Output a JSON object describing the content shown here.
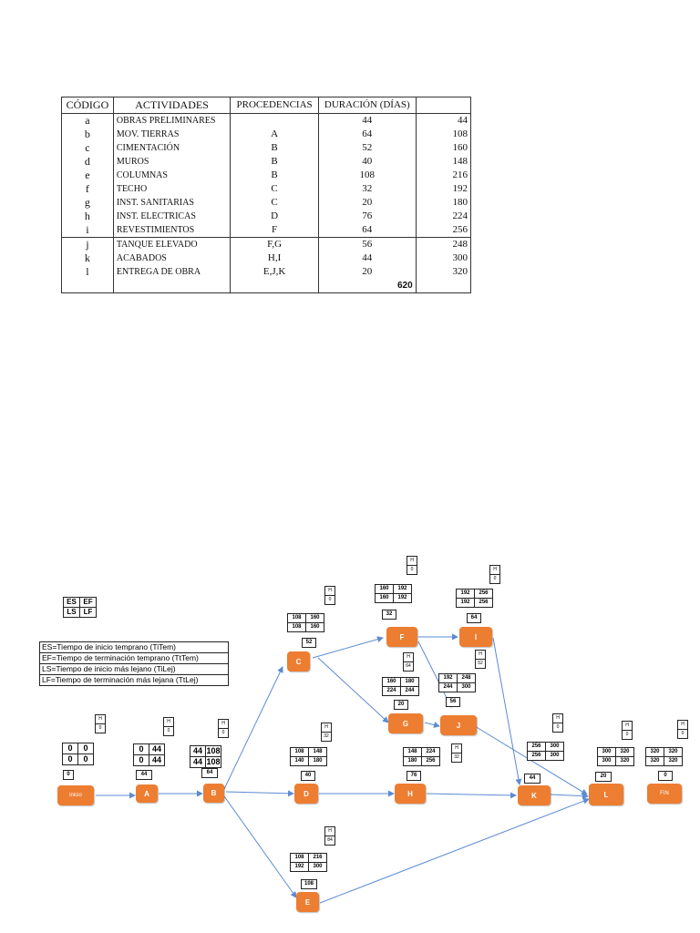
{
  "table": {
    "headers": [
      "CÓDIGO",
      "ACTIVIDADES",
      "PROCEDENCIAS",
      "DURACIÓN (DÍAS)",
      ""
    ],
    "rows": [
      [
        "a",
        "OBRAS PRELIMINARES",
        "",
        "44",
        "44"
      ],
      [
        "b",
        "MOV. TIERRAS",
        "A",
        "64",
        "108"
      ],
      [
        "c",
        "CIMENTACIÓN",
        "B",
        "52",
        "160"
      ],
      [
        "d",
        "MUROS",
        "B",
        "40",
        "148"
      ],
      [
        "e",
        "COLUMNAS",
        "B",
        "108",
        "216"
      ],
      [
        "f",
        "TECHO",
        "C",
        "32",
        "192"
      ],
      [
        "g",
        "INST. SANITARIAS",
        "C",
        "20",
        "180"
      ],
      [
        "h",
        "INST. ELECTRICAS",
        "D",
        "76",
        "224"
      ],
      [
        "i",
        "REVESTIMIENTOS",
        "F",
        "64",
        "256"
      ],
      [
        "j",
        "TANQUE ELEVADO",
        "F,G",
        "56",
        "248"
      ],
      [
        "k",
        "ACABADOS",
        "H,I",
        "44",
        "300"
      ],
      [
        "l",
        "ENTREGA DE OBRA",
        "E,J,K",
        "20",
        "320"
      ]
    ],
    "total": "620"
  },
  "legend": {
    "grid": [
      "ES",
      "EF",
      "LS",
      "LF"
    ],
    "definitions": [
      "ES=Tiempo de inicio temprano (TiTem)",
      "EF=Tiempo de terminación temprano (TtTem)",
      "LS=Tiempo de inicio más lejano (TiLej)",
      "LF=Tiempo de terminación más lejana (TtLej)"
    ]
  },
  "network": {
    "nodes": {
      "inicio": {
        "label": "inicio",
        "es": "0",
        "ef": "0",
        "ls": "0",
        "lf": "0",
        "dur": "0",
        "h": "H",
        "hv": "0"
      },
      "A": {
        "label": "A",
        "es": "0",
        "ef": "44",
        "ls": "0",
        "lf": "44",
        "dur": "44",
        "h": "H",
        "hv": "0"
      },
      "B": {
        "label": "B",
        "es": "44",
        "ef": "108",
        "ls": "44",
        "lf": "108",
        "dur": "64",
        "h": "H",
        "hv": "0"
      },
      "C": {
        "label": "C",
        "es": "108",
        "ef": "160",
        "ls": "108",
        "lf": "160",
        "dur": "52",
        "h": "H",
        "hv": "0"
      },
      "D": {
        "label": "D",
        "es": "108",
        "ef": "148",
        "ls": "140",
        "lf": "180",
        "dur": "40",
        "h": "H",
        "hv": "32"
      },
      "E": {
        "label": "E",
        "es": "108",
        "ef": "216",
        "ls": "192",
        "lf": "300",
        "dur": "108",
        "h": "H",
        "hv": "84"
      },
      "F": {
        "label": "F",
        "es": "160",
        "ef": "192",
        "ls": "160",
        "lf": "192",
        "dur": "32",
        "h": "H",
        "hv": "0"
      },
      "G": {
        "label": "G",
        "es": "160",
        "ef": "180",
        "ls": "224",
        "lf": "244",
        "dur": "20",
        "h": "H",
        "hv": "64"
      },
      "H": {
        "label": "H",
        "es": "148",
        "ef": "224",
        "ls": "180",
        "lf": "256",
        "dur": "76",
        "h": "H",
        "hv": "32"
      },
      "I": {
        "label": "I",
        "es": "192",
        "ef": "256",
        "ls": "192",
        "lf": "256",
        "dur": "64",
        "h": "H",
        "hv": "0"
      },
      "J": {
        "label": "J",
        "es": "192",
        "ef": "248",
        "ls": "244",
        "lf": "300",
        "dur": "56",
        "h": "H",
        "hv": "52"
      },
      "K": {
        "label": "K",
        "es": "256",
        "ef": "300",
        "ls": "256",
        "lf": "300",
        "dur": "44",
        "h": "H",
        "hv": "0"
      },
      "L": {
        "label": "L",
        "es": "300",
        "ef": "320",
        "ls": "300",
        "lf": "320",
        "dur": "20",
        "h": "H",
        "hv": "0"
      },
      "FIN": {
        "label": "FIN",
        "es": "320",
        "ef": "320",
        "ls": "320",
        "lf": "320",
        "dur": "0",
        "h": "H",
        "hv": "0"
      }
    },
    "colors": {
      "node": "#ed7d31",
      "arrow": "#5b8bd4"
    }
  }
}
